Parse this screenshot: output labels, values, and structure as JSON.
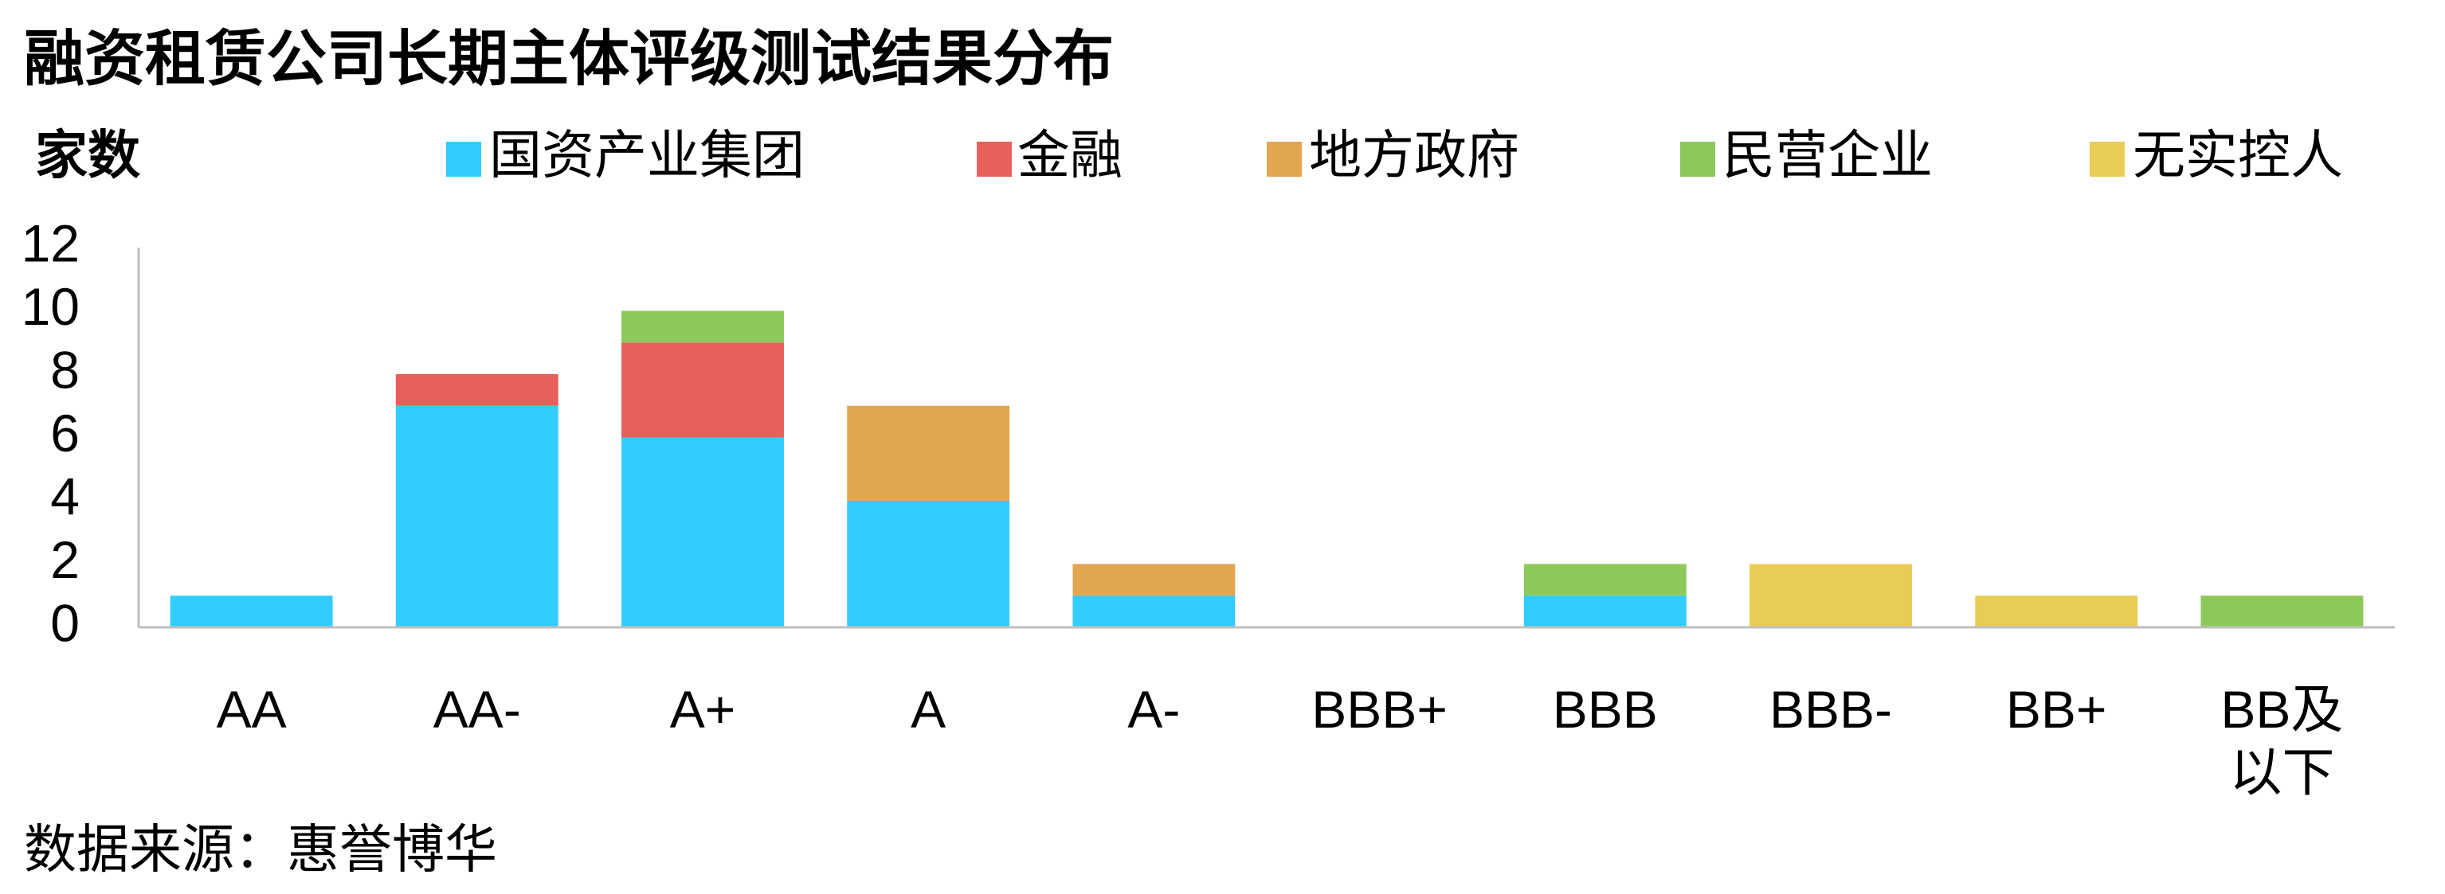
{
  "chart_data": {
    "type": "bar",
    "stacked": true,
    "title": "融资租赁公司长期主体评级测试结果分布",
    "y_label": "家数",
    "source": "数据来源：惠誉博华",
    "categories": [
      "AA",
      "AA-",
      "A+",
      "A",
      "A-",
      "BBB+",
      "BBB",
      "BBB-",
      "BB+",
      "BB及以下"
    ],
    "series": [
      {
        "name": "国资产业集团",
        "color": "#33ccff",
        "values": [
          1,
          7,
          6,
          4,
          1,
          0,
          1,
          0,
          0,
          0
        ]
      },
      {
        "name": "金融",
        "color": "#e8605a",
        "values": [
          0,
          1,
          3,
          0,
          0,
          0,
          0,
          0,
          0,
          0
        ]
      },
      {
        "name": "地方政府",
        "color": "#e2a550",
        "values": [
          0,
          0,
          0,
          3,
          1,
          0,
          0,
          0,
          0,
          0
        ]
      },
      {
        "name": "民营企业",
        "color": "#8cc95a",
        "values": [
          0,
          0,
          1,
          0,
          0,
          0,
          1,
          0,
          0,
          1
        ]
      },
      {
        "name": "无实控人",
        "color": "#e8cc55",
        "values": [
          0,
          0,
          0,
          0,
          0,
          0,
          0,
          2,
          1,
          0
        ]
      }
    ],
    "ylim": [
      0,
      12
    ],
    "yticks": [
      0,
      2,
      4,
      6,
      8,
      10,
      12
    ],
    "grid": false
  }
}
